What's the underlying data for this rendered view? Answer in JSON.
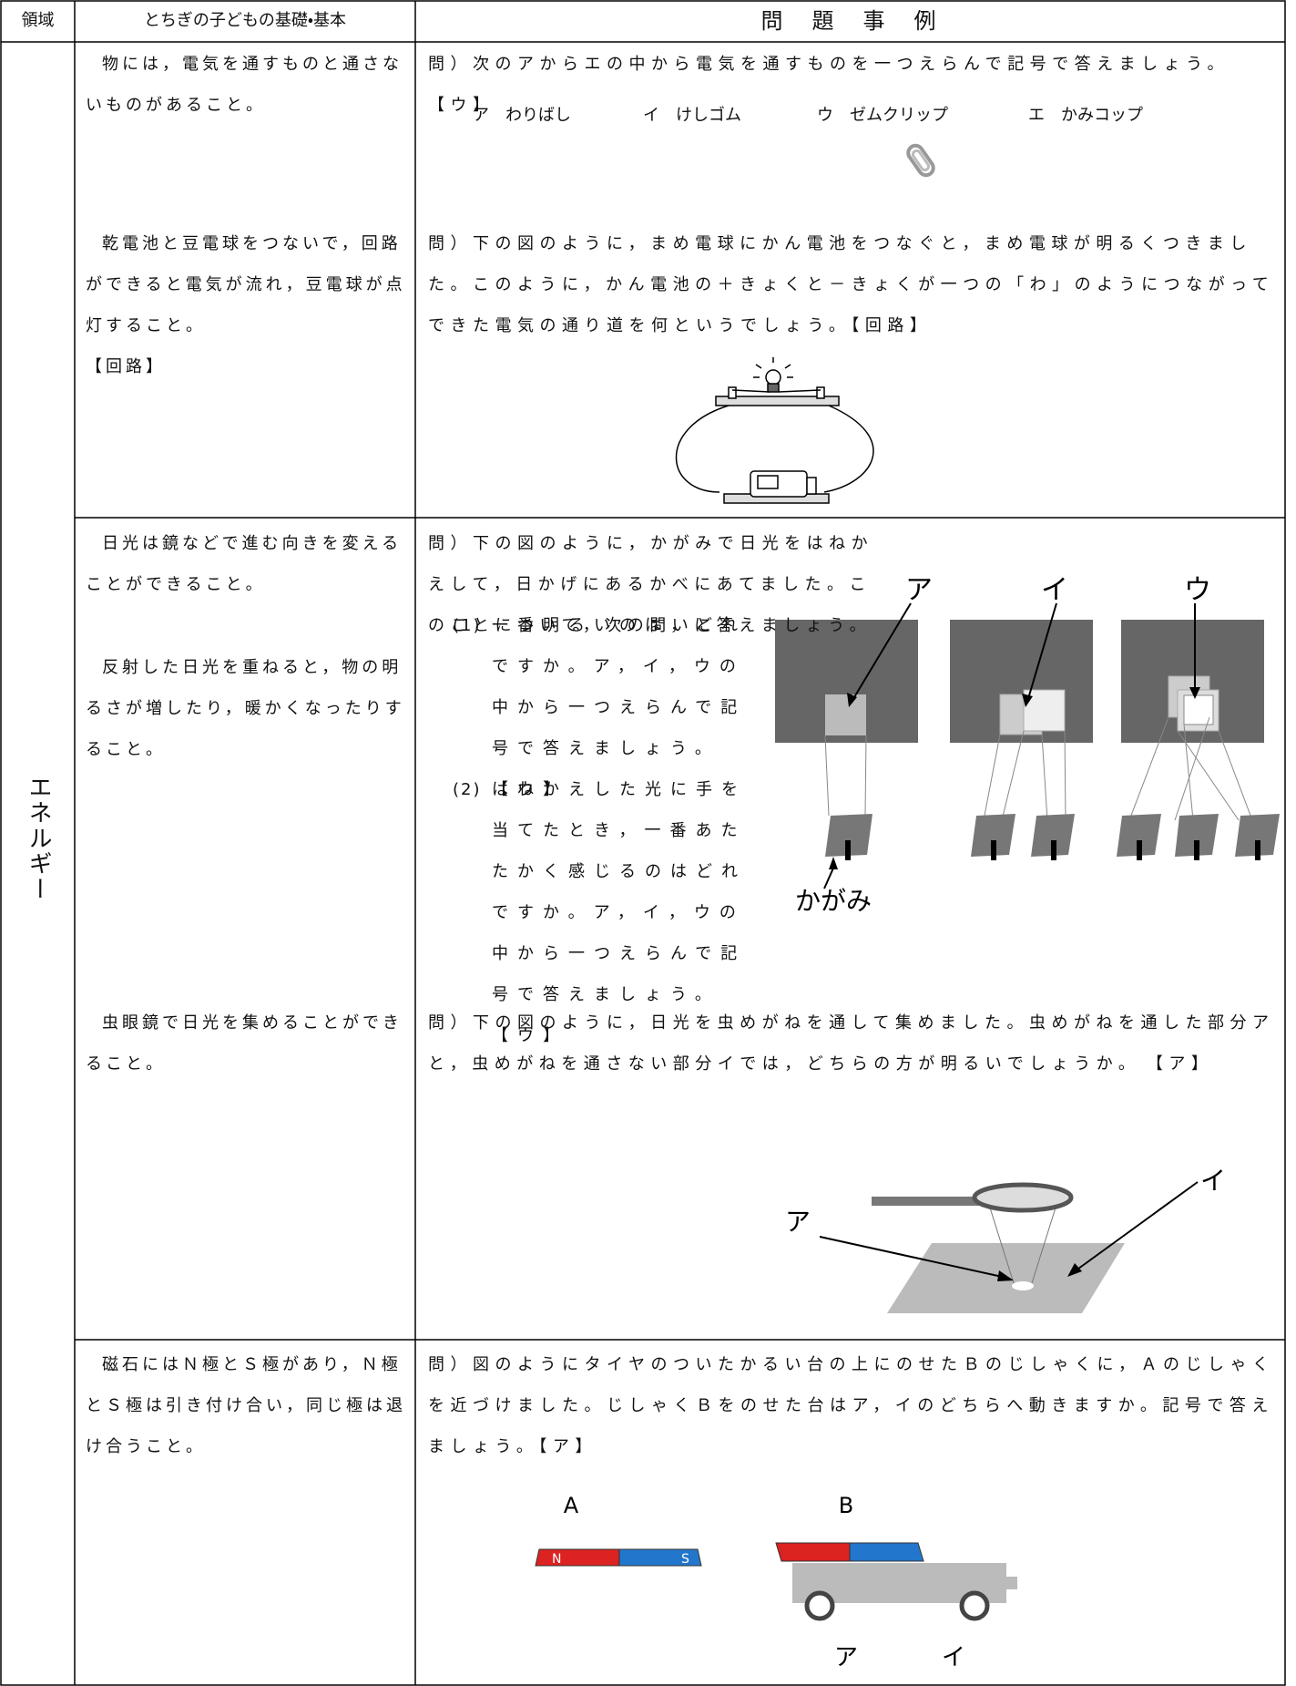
{
  "table": {
    "header": [
      "領域",
      "とちぎの子どもの基礎・基本",
      "問　題　事　例"
    ],
    "domain": "エネルギー",
    "entries": [
      {
        "basic": [
          "物には，電気を通すものと通さないものがあること。"
        ],
        "question": "問）次のアからエの中から電気を通すものを一つえらんで記号で答えましょう。【ウ】",
        "choices": [
          "ア　わりばし",
          "イ　けしゴム",
          "ウ　ゼムクリップ",
          "エ　かみコップ"
        ]
      },
      {
        "basic": [
          "乾電池と豆電球をつないで，回路ができると電気が流れ，豆電球が点灯すること。"
        ],
        "basic_answer": "【回路】",
        "question": "問）下の図のように，まめ電球にかん電池をつなぐと，まめ電球が明るくつきました。このように，かん電池の＋きょくと－きょくが一つの「わ」のようにつながってできた電気の通り道を何というでしょう。【回路】"
      },
      {
        "basic": [
          "日光は鏡などで進む向きを変えることができること。",
          "反射した日光を重ねると，物の明るさが増したり，暖かくなったりすること。"
        ],
        "question": "問）下の図のように，かがみで日光をはねかえして，日かげにあるかべにあてました。このことについて，次の問いに答えましょう。",
        "subquestions": [
          {
            "number": "(1)",
            "text": "一番明るいのは，どれですか。ア，イ，ウの中から一つえらんで記号で答えましょう。【ウ】"
          },
          {
            "number": "(2)",
            "text": "はねかえした光に手を当てたとき，一番あたたかく感じるのはどれですか。ア，イ，ウの中から一つえらんで記号で答えましょう。【ウ】"
          }
        ],
        "figure_labels": [
          "ア",
          "イ",
          "ウ",
          "かがみ"
        ]
      },
      {
        "basic": [
          "虫眼鏡で日光を集めることができること。"
        ],
        "question": "問）下の図のように，日光を虫めがねを通して集めました。虫めがねを通した部分アと，虫めがねを通さない部分イでは，どちらの方が明るいでしょうか。　【ア】",
        "figure_labels": [
          "ア",
          "イ"
        ]
      },
      {
        "basic": [
          "磁石にはＮ極とＳ極があり，Ｎ極とＳ極は引き付け合い，同じ極は退け合うこと。"
        ],
        "question": "問）図のようにタイヤのついたかるい台の上にのせたＢのじしゃくに，Ａのじしゃくを近づけました。じしゃくＢをのせた台はア，イのどちらへ動きますか。記号で答えましょう。【ア】",
        "figure_labels": [
          "A",
          "B",
          "ア",
          "イ"
        ],
        "magnet_poles": [
          "N",
          "S"
        ]
      }
    ]
  }
}
